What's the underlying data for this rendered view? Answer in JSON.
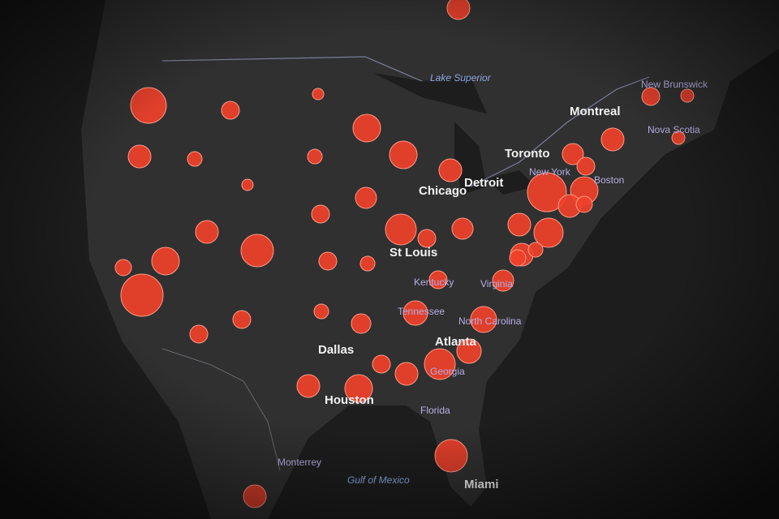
{
  "places": [
    "Lake Superior",
    "Montreal",
    "Toronto",
    "Detroit",
    "Chicago",
    "New York",
    "Boston",
    "St Louis",
    "Kentucky",
    "Virginia",
    "North Carolina",
    "Tennessee",
    "Atlanta",
    "Georgia",
    "Florida",
    "Dallas",
    "Houston",
    "Gulf of Mexico",
    "Miami",
    "New Brunswick",
    "Nova Scotia",
    "Monterrey"
  ]
}
